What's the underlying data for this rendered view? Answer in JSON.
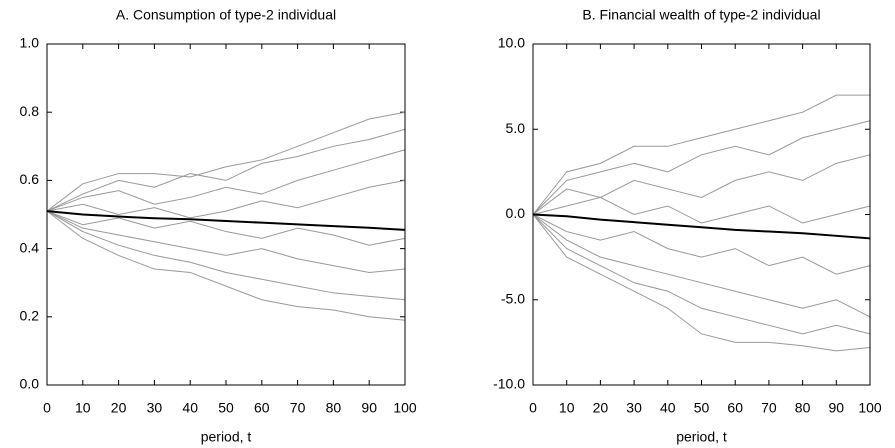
{
  "chart_data": [
    {
      "type": "line",
      "title": "A. Consumption of type-2 individual",
      "x_label": "period, t",
      "x": [
        0,
        10,
        20,
        30,
        40,
        50,
        60,
        70,
        80,
        90,
        100
      ],
      "series": [
        {
          "color": "#999999",
          "values": [
            0.51,
            0.59,
            0.62,
            0.62,
            0.61,
            0.64,
            0.66,
            0.7,
            0.74,
            0.78,
            0.8
          ]
        },
        {
          "color": "#999999",
          "values": [
            0.51,
            0.56,
            0.6,
            0.58,
            0.62,
            0.6,
            0.65,
            0.67,
            0.7,
            0.72,
            0.75
          ]
        },
        {
          "color": "#999999",
          "values": [
            0.51,
            0.55,
            0.57,
            0.53,
            0.55,
            0.58,
            0.56,
            0.6,
            0.63,
            0.66,
            0.69
          ]
        },
        {
          "color": "#999999",
          "values": [
            0.51,
            0.53,
            0.5,
            0.52,
            0.49,
            0.51,
            0.54,
            0.52,
            0.55,
            0.58,
            0.6
          ]
        },
        {
          "color": "#999999",
          "values": [
            0.51,
            0.47,
            0.49,
            0.46,
            0.48,
            0.45,
            0.43,
            0.46,
            0.44,
            0.41,
            0.43
          ]
        },
        {
          "color": "#999999",
          "values": [
            0.51,
            0.46,
            0.44,
            0.42,
            0.4,
            0.38,
            0.4,
            0.37,
            0.35,
            0.33,
            0.34
          ]
        },
        {
          "color": "#999999",
          "values": [
            0.51,
            0.45,
            0.41,
            0.38,
            0.36,
            0.33,
            0.31,
            0.29,
            0.27,
            0.26,
            0.25
          ]
        },
        {
          "color": "#999999",
          "values": [
            0.51,
            0.43,
            0.38,
            0.34,
            0.33,
            0.29,
            0.25,
            0.23,
            0.22,
            0.2,
            0.19
          ]
        },
        {
          "color": "#000000",
          "values": [
            0.51,
            0.5,
            0.494,
            0.489,
            0.486,
            0.481,
            0.476,
            0.471,
            0.466,
            0.461,
            0.455
          ]
        }
      ],
      "xlim": [
        0,
        100
      ],
      "xticks": [
        0,
        10,
        20,
        30,
        40,
        50,
        60,
        70,
        80,
        90,
        100
      ],
      "ylim": [
        0,
        1
      ],
      "yticks": [
        {
          "value": 0,
          "label": "0.0"
        },
        0.2,
        0.4,
        0.6,
        0.8,
        {
          "value": 1,
          "label": "1.0"
        }
      ]
    },
    {
      "type": "line",
      "title": "B. Financial wealth of type-2 individual",
      "x_label": "period, t",
      "x": [
        0,
        10,
        20,
        30,
        40,
        50,
        60,
        70,
        80,
        90,
        100
      ],
      "series": [
        {
          "color": "#999999",
          "values": [
            0,
            2.5,
            3,
            4,
            4,
            4.5,
            5,
            5.5,
            6,
            7,
            7
          ]
        },
        {
          "color": "#999999",
          "values": [
            0,
            2,
            2.5,
            3,
            2.5,
            3.5,
            4,
            3.5,
            4.5,
            5,
            5.5
          ]
        },
        {
          "color": "#999999",
          "values": [
            0,
            1.5,
            1,
            2,
            1.5,
            1,
            2,
            2.5,
            2,
            3,
            3.5
          ]
        },
        {
          "color": "#999999",
          "values": [
            0,
            0.5,
            1,
            0,
            0.5,
            -0.5,
            0,
            0.5,
            -0.5,
            0,
            0.5
          ]
        },
        {
          "color": "#999999",
          "values": [
            0,
            -1,
            -1.5,
            -1,
            -2,
            -2.5,
            -2,
            -3,
            -2.5,
            -3.5,
            -3
          ]
        },
        {
          "color": "#999999",
          "values": [
            0,
            -1.5,
            -2.5,
            -3,
            -3.5,
            -4,
            -4.5,
            -5,
            -5.5,
            -5,
            -6
          ]
        },
        {
          "color": "#999999",
          "values": [
            0,
            -2,
            -3,
            -4,
            -4.5,
            -5.5,
            -6,
            -6.5,
            -7,
            -6.5,
            -7
          ]
        },
        {
          "color": "#999999",
          "values": [
            0,
            -2.5,
            -3.5,
            -4.5,
            -5.5,
            -7,
            -7.5,
            -7.5,
            -7.7,
            -8,
            -7.8
          ]
        },
        {
          "color": "#000000",
          "values": [
            0,
            -0.1,
            -0.3,
            -0.45,
            -0.6,
            -0.75,
            -0.9,
            -1.0,
            -1.1,
            -1.25,
            -1.4
          ]
        }
      ],
      "xlim": [
        0,
        100
      ],
      "xticks": [
        0,
        10,
        20,
        30,
        40,
        50,
        60,
        70,
        80,
        90,
        100
      ],
      "ylim": [
        -10,
        10
      ],
      "yticks": [
        {
          "value": -10,
          "label": "-10.0"
        },
        {
          "value": -5,
          "label": "-5.0"
        },
        {
          "value": 0,
          "label": "0.0"
        },
        {
          "value": 5,
          "label": "5.0"
        },
        {
          "value": 10,
          "label": "10.0"
        }
      ]
    }
  ]
}
